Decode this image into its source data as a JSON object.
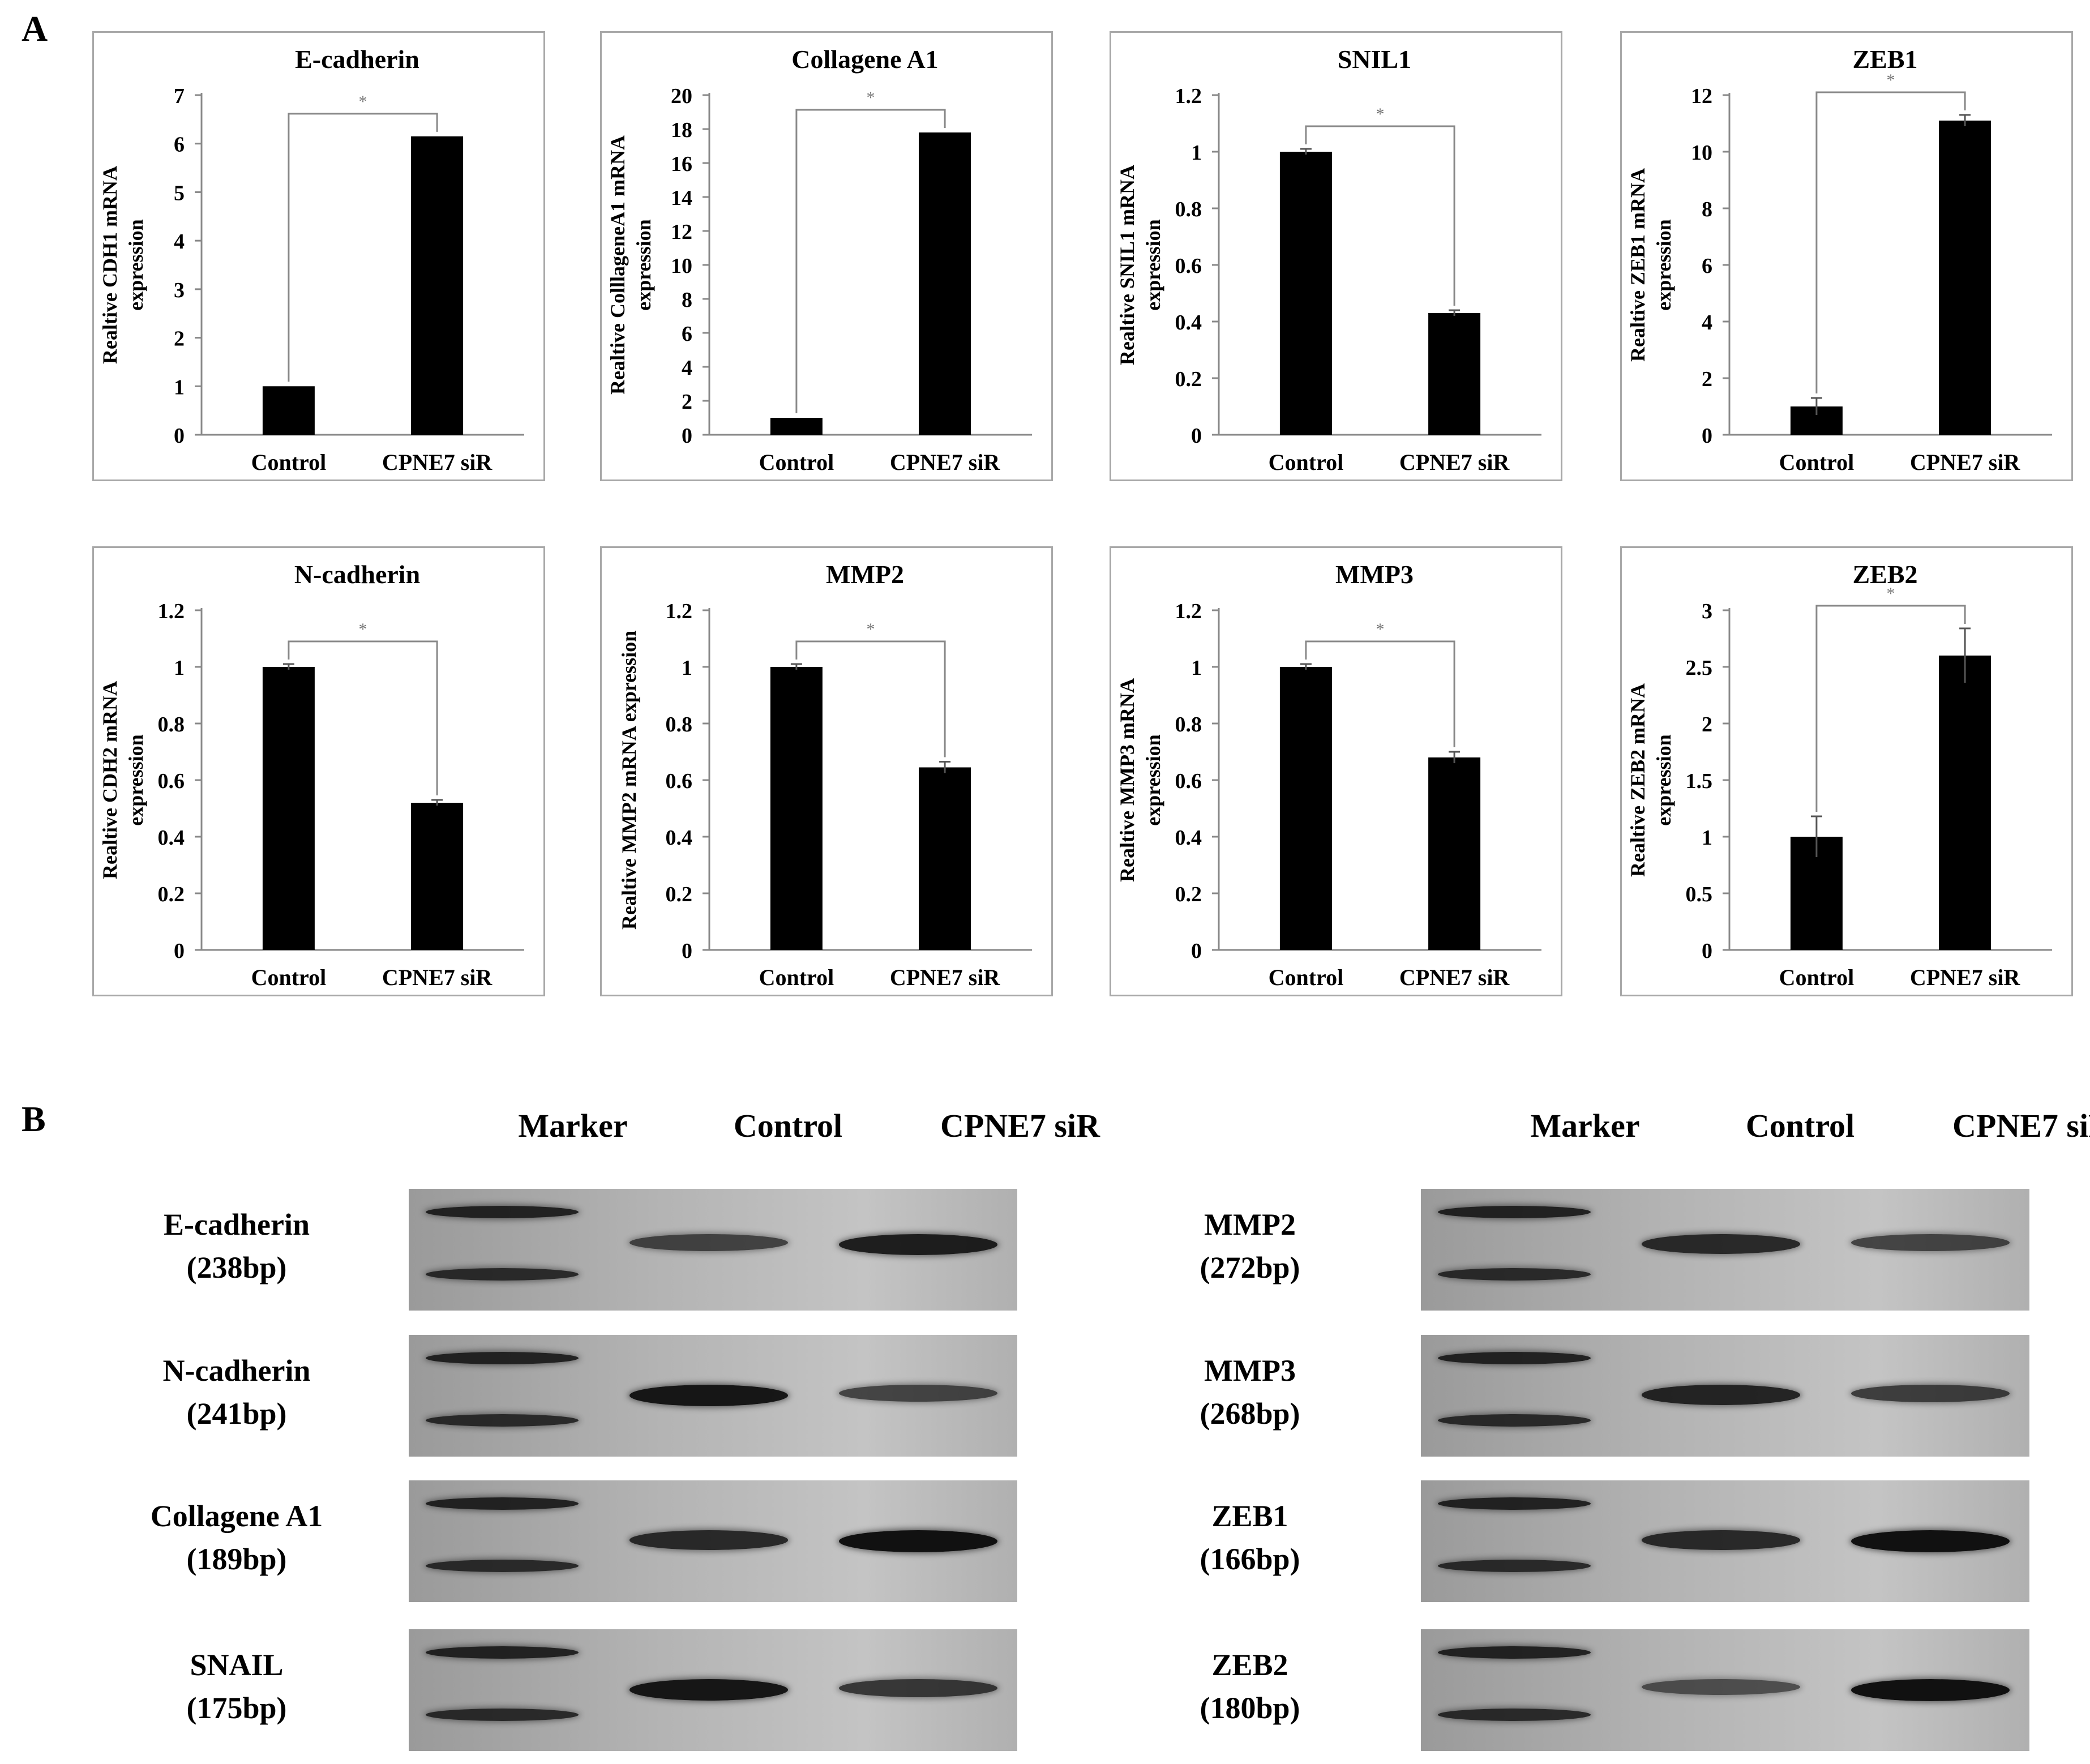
{
  "panels": {
    "a": "A",
    "b": "B"
  },
  "chart_data": [
    {
      "type": "bar",
      "title": "E-cadherin",
      "ylabel": [
        "Realtive CDH1 mRNA",
        "expression"
      ],
      "categories": [
        "Control",
        "CPNE7 siR"
      ],
      "values": [
        1,
        6.15
      ],
      "errors": [
        0,
        0
      ],
      "ylim": [
        0,
        7
      ],
      "yticks": [
        0,
        1,
        2,
        3,
        4,
        5,
        6,
        7
      ],
      "tick_labels": [
        "0",
        "1",
        "2",
        "3",
        "4",
        "5",
        "6",
        "7"
      ],
      "significance": "*",
      "grid": false
    },
    {
      "type": "bar",
      "title": "Collagene A1",
      "ylabel": [
        "Realtive ColllageneA1  mRNA",
        "expression"
      ],
      "categories": [
        "Control",
        "CPNE7 siR"
      ],
      "values": [
        1,
        17.8
      ],
      "errors": [
        0,
        0
      ],
      "ylim": [
        0,
        20
      ],
      "yticks": [
        0,
        2,
        4,
        6,
        8,
        10,
        12,
        14,
        16,
        18,
        20
      ],
      "tick_labels": [
        "0",
        "2",
        "4",
        "6",
        "8",
        "10",
        "12",
        "14",
        "16",
        "18",
        "20"
      ],
      "significance": "*",
      "grid": false
    },
    {
      "type": "bar",
      "title": "SNIL1",
      "ylabel": [
        "Realtive SNIL1 mRNA",
        "expression"
      ],
      "categories": [
        "Control",
        "CPNE7 siR"
      ],
      "values": [
        1,
        0.43
      ],
      "errors": [
        0.01,
        0.01
      ],
      "ylim": [
        0,
        1.2
      ],
      "yticks": [
        0,
        0.2,
        0.4,
        0.6,
        0.8,
        1,
        1.2
      ],
      "tick_labels": [
        "0",
        "0.2",
        "0.4",
        "0.6",
        "0.8",
        "1",
        "1.2"
      ],
      "significance": "*",
      "grid": false
    },
    {
      "type": "bar",
      "title": "ZEB1",
      "ylabel": [
        "Realtive ZEB1 mRNA",
        "expression"
      ],
      "categories": [
        "Control",
        "CPNE7 siR"
      ],
      "values": [
        1,
        11.1
      ],
      "errors": [
        0.3,
        0.2
      ],
      "ylim": [
        0,
        12
      ],
      "yticks": [
        0,
        2,
        4,
        6,
        8,
        10,
        12
      ],
      "tick_labels": [
        "0",
        "2",
        "4",
        "6",
        "8",
        "10",
        "12"
      ],
      "significance": "*",
      "grid": false
    },
    {
      "type": "bar",
      "title": "N-cadherin",
      "ylabel": [
        "Realtive CDH2 mRNA",
        "expression"
      ],
      "categories": [
        "Control",
        "CPNE7 siR"
      ],
      "values": [
        1,
        0.52
      ],
      "errors": [
        0.01,
        0.01
      ],
      "ylim": [
        0,
        1.2
      ],
      "yticks": [
        0,
        0.2,
        0.4,
        0.6,
        0.8,
        1,
        1.2
      ],
      "tick_labels": [
        "0",
        "0.2",
        "0.4",
        "0.6",
        "0.8",
        "1",
        "1.2"
      ],
      "significance": "*",
      "grid": false
    },
    {
      "type": "bar",
      "title": "MMP2",
      "ylabel": [
        "Realtive MMP2 mRNA expression"
      ],
      "categories": [
        "Control",
        "CPNE7 siR"
      ],
      "values": [
        1,
        0.645
      ],
      "errors": [
        0.01,
        0.02
      ],
      "ylim": [
        0,
        1.2
      ],
      "yticks": [
        0,
        0.2,
        0.4,
        0.6,
        0.8,
        1,
        1.2
      ],
      "tick_labels": [
        "0",
        "0.2",
        "0.4",
        "0.6",
        "0.8",
        "1",
        "1.2"
      ],
      "significance": "*",
      "grid": false
    },
    {
      "type": "bar",
      "title": "MMP3",
      "ylabel": [
        "Realtive MMP3 mRNA",
        "expression"
      ],
      "categories": [
        "Control",
        "CPNE7 siR"
      ],
      "values": [
        1,
        0.68
      ],
      "errors": [
        0.01,
        0.02
      ],
      "ylim": [
        0,
        1.2
      ],
      "yticks": [
        0,
        0.2,
        0.4,
        0.6,
        0.8,
        1,
        1.2
      ],
      "tick_labels": [
        "0",
        "0.2",
        "0.4",
        "0.6",
        "0.8",
        "1",
        "1.2"
      ],
      "significance": "*",
      "grid": false
    },
    {
      "type": "bar",
      "title": "ZEB2",
      "ylabel": [
        "Realtive ZEB2 mRNA",
        "expression"
      ],
      "categories": [
        "Control",
        "CPNE7 siR"
      ],
      "values": [
        1,
        2.6
      ],
      "errors": [
        0.18,
        0.24
      ],
      "ylim": [
        0,
        3
      ],
      "yticks": [
        0,
        0.5,
        1,
        1.5,
        2,
        2.5,
        3
      ],
      "tick_labels": [
        "0",
        "0.5",
        "1",
        "1.5",
        "2",
        "2.5",
        "3"
      ],
      "significance": "*",
      "grid": false
    }
  ],
  "gel": {
    "lanes": [
      "Marker",
      "Control",
      "CPNE7 siR"
    ],
    "left": [
      {
        "gene": "E-cadherin",
        "size": "(238bp)",
        "control": 0.55,
        "sir": 0.85
      },
      {
        "gene": "N-cadherin",
        "size": "(241bp)",
        "control": 0.9,
        "sir": 0.55
      },
      {
        "gene": "Collagene A1",
        "size": "(189bp)",
        "control": 0.75,
        "sir": 0.95
      },
      {
        "gene": "SNAIL",
        "size": "(175bp)",
        "control": 0.9,
        "sir": 0.65
      }
    ],
    "right": [
      {
        "gene": "MMP2",
        "size": "(272bp)",
        "control": 0.75,
        "sir": 0.55
      },
      {
        "gene": "MMP3",
        "size": "(268bp)",
        "control": 0.8,
        "sir": 0.6
      },
      {
        "gene": "ZEB1",
        "size": "(166bp)",
        "control": 0.75,
        "sir": 0.95
      },
      {
        "gene": "ZEB2",
        "size": "(180bp)",
        "control": 0.45,
        "sir": 0.95
      }
    ]
  }
}
